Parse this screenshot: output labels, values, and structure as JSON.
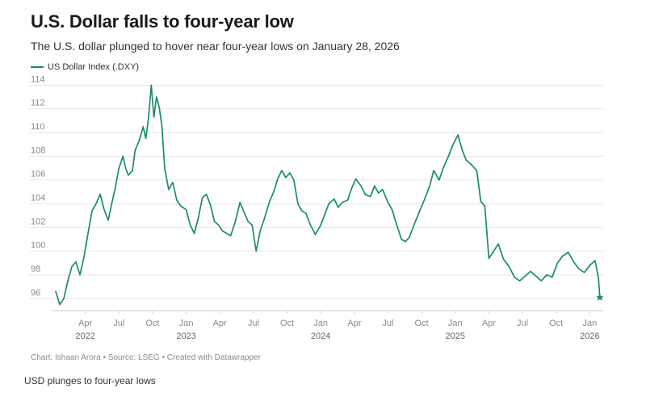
{
  "header": {
    "title": "U.S. Dollar falls to four-year low",
    "subtitle": "The U.S. dollar plunged to hover near four-year lows on January 28, 2026"
  },
  "footer": {
    "source": "Chart: Ishaan Arora • Source: LSEG • Created with Datawrapper",
    "caption": "USD plunges to four-year lows"
  },
  "colors": {
    "line": "#1a8a72",
    "grid": "#e6e6e6",
    "axis": "#cfcfcf"
  },
  "chart_data": {
    "type": "line",
    "title": "U.S. Dollar falls to four-year low",
    "xlabel": "",
    "ylabel": "",
    "ylim": [
      95,
      114.5
    ],
    "yticks": [
      96,
      98,
      100,
      102,
      104,
      106,
      108,
      110,
      112,
      114
    ],
    "grid": true,
    "legend": "top-left",
    "xticks": [
      {
        "label": "Apr",
        "year": "2022",
        "t": 2022.25
      },
      {
        "label": "Jul",
        "year": "",
        "t": 2022.5
      },
      {
        "label": "Oct",
        "year": "",
        "t": 2022.75
      },
      {
        "label": "Jan",
        "year": "2023",
        "t": 2023.0
      },
      {
        "label": "Apr",
        "year": "",
        "t": 2023.25
      },
      {
        "label": "Jul",
        "year": "",
        "t": 2023.5
      },
      {
        "label": "Oct",
        "year": "",
        "t": 2023.75
      },
      {
        "label": "Jan",
        "year": "2024",
        "t": 2024.0
      },
      {
        "label": "Apr",
        "year": "",
        "t": 2024.25
      },
      {
        "label": "Jul",
        "year": "",
        "t": 2024.5
      },
      {
        "label": "Oct",
        "year": "",
        "t": 2024.75
      },
      {
        "label": "Jan",
        "year": "2025",
        "t": 2025.0
      },
      {
        "label": "Apr",
        "year": "",
        "t": 2025.25
      },
      {
        "label": "Jul",
        "year": "",
        "t": 2025.5
      },
      {
        "label": "Oct",
        "year": "",
        "t": 2025.75
      },
      {
        "label": "Jan",
        "year": "2026",
        "t": 2026.0
      }
    ],
    "series": [
      {
        "name": "US Dollar Index (.DXY)",
        "points": [
          [
            2022.03,
            96.6
          ],
          [
            2022.06,
            95.5
          ],
          [
            2022.09,
            96.0
          ],
          [
            2022.12,
            97.5
          ],
          [
            2022.15,
            98.7
          ],
          [
            2022.18,
            99.1
          ],
          [
            2022.21,
            98.0
          ],
          [
            2022.24,
            99.5
          ],
          [
            2022.27,
            101.5
          ],
          [
            2022.3,
            103.4
          ],
          [
            2022.33,
            104.0
          ],
          [
            2022.36,
            104.8
          ],
          [
            2022.39,
            103.5
          ],
          [
            2022.42,
            102.6
          ],
          [
            2022.45,
            104.2
          ],
          [
            2022.47,
            105.2
          ],
          [
            2022.5,
            107.0
          ],
          [
            2022.53,
            108.0
          ],
          [
            2022.55,
            107.0
          ],
          [
            2022.57,
            106.4
          ],
          [
            2022.6,
            106.8
          ],
          [
            2022.62,
            108.5
          ],
          [
            2022.65,
            109.3
          ],
          [
            2022.68,
            110.5
          ],
          [
            2022.7,
            109.5
          ],
          [
            2022.72,
            111.2
          ],
          [
            2022.74,
            114.0
          ],
          [
            2022.76,
            111.3
          ],
          [
            2022.78,
            113.0
          ],
          [
            2022.8,
            112.1
          ],
          [
            2022.82,
            110.5
          ],
          [
            2022.84,
            107.0
          ],
          [
            2022.87,
            105.2
          ],
          [
            2022.9,
            105.8
          ],
          [
            2022.93,
            104.3
          ],
          [
            2022.96,
            103.8
          ],
          [
            2023.0,
            103.5
          ],
          [
            2023.03,
            102.2
          ],
          [
            2023.06,
            101.5
          ],
          [
            2023.09,
            102.8
          ],
          [
            2023.12,
            104.5
          ],
          [
            2023.15,
            104.8
          ],
          [
            2023.18,
            103.9
          ],
          [
            2023.21,
            102.5
          ],
          [
            2023.24,
            102.2
          ],
          [
            2023.27,
            101.7
          ],
          [
            2023.3,
            101.5
          ],
          [
            2023.33,
            101.3
          ],
          [
            2023.36,
            102.3
          ],
          [
            2023.4,
            104.1
          ],
          [
            2023.43,
            103.3
          ],
          [
            2023.46,
            102.5
          ],
          [
            2023.49,
            102.2
          ],
          [
            2023.52,
            100.0
          ],
          [
            2023.55,
            101.7
          ],
          [
            2023.58,
            102.7
          ],
          [
            2023.62,
            104.2
          ],
          [
            2023.65,
            105.0
          ],
          [
            2023.68,
            106.1
          ],
          [
            2023.71,
            106.8
          ],
          [
            2023.74,
            106.2
          ],
          [
            2023.77,
            106.6
          ],
          [
            2023.8,
            106.0
          ],
          [
            2023.83,
            104.0
          ],
          [
            2023.86,
            103.4
          ],
          [
            2023.89,
            103.2
          ],
          [
            2023.92,
            102.3
          ],
          [
            2023.96,
            101.4
          ],
          [
            2024.0,
            102.2
          ],
          [
            2024.03,
            103.1
          ],
          [
            2024.06,
            104.0
          ],
          [
            2024.1,
            104.4
          ],
          [
            2024.13,
            103.7
          ],
          [
            2024.16,
            104.1
          ],
          [
            2024.2,
            104.3
          ],
          [
            2024.23,
            105.3
          ],
          [
            2024.26,
            106.1
          ],
          [
            2024.3,
            105.5
          ],
          [
            2024.33,
            104.8
          ],
          [
            2024.37,
            104.6
          ],
          [
            2024.4,
            105.5
          ],
          [
            2024.43,
            104.9
          ],
          [
            2024.46,
            105.2
          ],
          [
            2024.5,
            104.1
          ],
          [
            2024.53,
            103.5
          ],
          [
            2024.56,
            102.4
          ],
          [
            2024.6,
            101.0
          ],
          [
            2024.63,
            100.8
          ],
          [
            2024.66,
            101.2
          ],
          [
            2024.7,
            102.4
          ],
          [
            2024.74,
            103.5
          ],
          [
            2024.77,
            104.3
          ],
          [
            2024.81,
            105.5
          ],
          [
            2024.84,
            106.8
          ],
          [
            2024.88,
            106.0
          ],
          [
            2024.91,
            107.0
          ],
          [
            2024.95,
            108.0
          ],
          [
            2024.98,
            108.9
          ],
          [
            2025.02,
            109.8
          ],
          [
            2025.05,
            108.6
          ],
          [
            2025.08,
            107.7
          ],
          [
            2025.12,
            107.3
          ],
          [
            2025.16,
            106.8
          ],
          [
            2025.19,
            104.2
          ],
          [
            2025.22,
            103.8
          ],
          [
            2025.25,
            99.4
          ],
          [
            2025.28,
            99.9
          ],
          [
            2025.32,
            100.6
          ],
          [
            2025.36,
            99.3
          ],
          [
            2025.4,
            98.7
          ],
          [
            2025.44,
            97.8
          ],
          [
            2025.48,
            97.5
          ],
          [
            2025.52,
            97.9
          ],
          [
            2025.56,
            98.3
          ],
          [
            2025.6,
            97.9
          ],
          [
            2025.64,
            97.5
          ],
          [
            2025.68,
            98.0
          ],
          [
            2025.72,
            97.8
          ],
          [
            2025.76,
            99.0
          ],
          [
            2025.8,
            99.6
          ],
          [
            2025.84,
            99.9
          ],
          [
            2025.88,
            99.1
          ],
          [
            2025.92,
            98.5
          ],
          [
            2025.96,
            98.2
          ],
          [
            2026.0,
            98.8
          ],
          [
            2026.04,
            99.2
          ],
          [
            2026.065,
            97.7
          ],
          [
            2026.075,
            96.1
          ]
        ]
      }
    ]
  }
}
